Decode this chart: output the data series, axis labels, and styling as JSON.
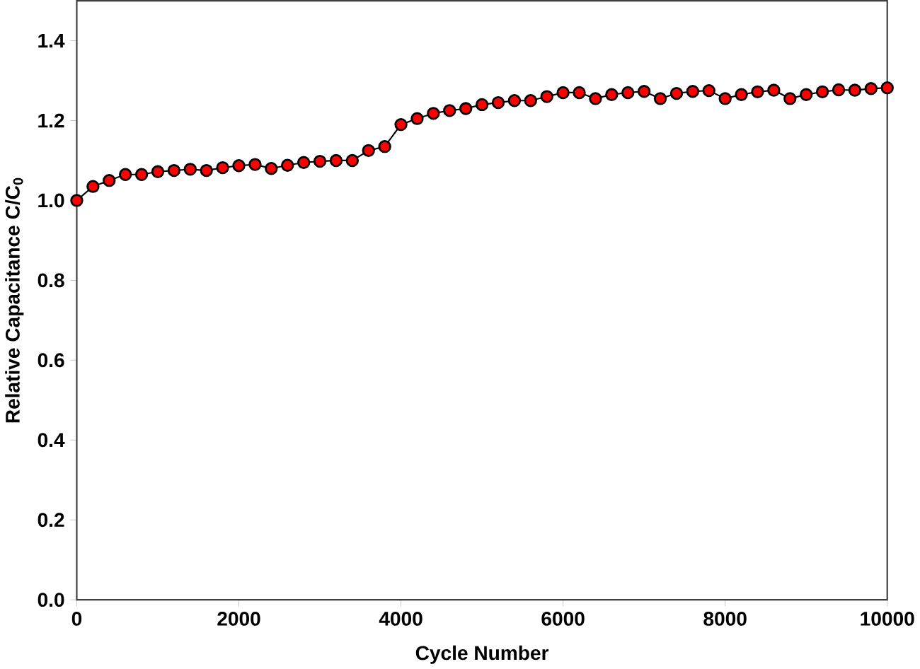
{
  "chart_data": {
    "type": "line",
    "xlabel": "Cycle Number",
    "ylabel": "Relative Capacitance C/C$_{0}$",
    "x": [
      0,
      200,
      400,
      600,
      800,
      1000,
      1200,
      1400,
      1600,
      1800,
      2000,
      2200,
      2400,
      2600,
      2800,
      3000,
      3200,
      3400,
      3600,
      3800,
      4000,
      4200,
      4400,
      4600,
      4800,
      5000,
      5200,
      5400,
      5600,
      5800,
      6000,
      6200,
      6400,
      6600,
      6800,
      7000,
      7200,
      7400,
      7600,
      7800,
      8000,
      8200,
      8400,
      8600,
      8800,
      9000,
      9200,
      9400,
      9600,
      9800,
      10000
    ],
    "series": [
      {
        "color": "#ff0000",
        "values": [
          1.0,
          1.035,
          1.05,
          1.065,
          1.065,
          1.072,
          1.075,
          1.078,
          1.075,
          1.082,
          1.087,
          1.09,
          1.08,
          1.088,
          1.095,
          1.098,
          1.1,
          1.1,
          1.125,
          1.135,
          1.19,
          1.205,
          1.218,
          1.225,
          1.23,
          1.24,
          1.245,
          1.25,
          1.25,
          1.26,
          1.27,
          1.27,
          1.255,
          1.265,
          1.27,
          1.273,
          1.255,
          1.268,
          1.273,
          1.275,
          1.255,
          1.265,
          1.272,
          1.276,
          1.255,
          1.265,
          1.272,
          1.277,
          1.276,
          1.28,
          1.282
        ]
      }
    ],
    "xlim": [
      0,
      10000
    ],
    "ylim": [
      0,
      1.5
    ],
    "xticks": [
      0,
      2000,
      4000,
      6000,
      8000,
      10000
    ],
    "yticks": [
      {
        "value": 0,
        "label": "0.0"
      },
      {
        "value": 0.2,
        "label": "0.2"
      },
      {
        "value": 0.4,
        "label": "0.4"
      },
      {
        "value": 0.6,
        "label": "0.6"
      },
      {
        "value": 0.8,
        "label": "0.8"
      },
      {
        "value": 1.0,
        "label": "1.0"
      },
      {
        "value": 1.2,
        "label": "1.2"
      },
      {
        "value": 1.4,
        "label": "1.4"
      }
    ],
    "marker": "circle",
    "line_style": "solid",
    "grid": false
  }
}
